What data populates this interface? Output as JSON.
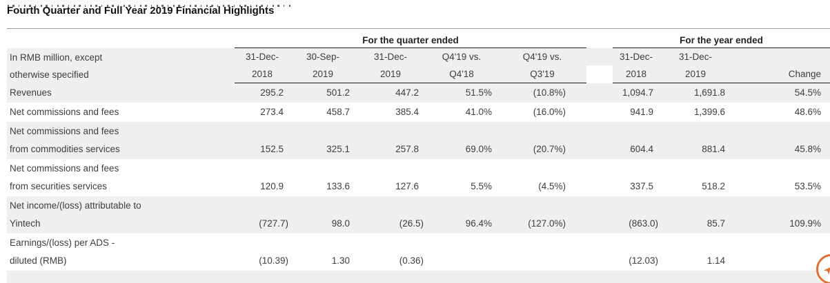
{
  "page": {
    "title": "Fourth Quarter and Full Year 2019 Financial Highlights"
  },
  "table": {
    "unit_note": "In RMB million, except\notherwise specified",
    "section_quarter": "For the quarter ended",
    "section_year": "For the year ended",
    "quarter_columns": [
      "31-Dec-\n2018",
      "30-Sep-\n2019",
      "31-Dec-\n2019",
      "Q4'19 vs.\nQ4'18",
      "Q4'19 vs.\nQ3'19"
    ],
    "year_columns": [
      "31-Dec-\n2018",
      "31-Dec-\n2019",
      "Change"
    ],
    "rows": [
      {
        "label": "Revenues",
        "values": [
          "295.2",
          "501.2",
          "447.2",
          "51.5%",
          "(10.8%)",
          "1,094.7",
          "1,691.8",
          "54.5%"
        ]
      },
      {
        "label": "Net commissions and fees",
        "values": [
          "273.4",
          "458.7",
          "385.4",
          "41.0%",
          "(16.0%)",
          "941.9",
          "1,399.6",
          "48.6%"
        ]
      },
      {
        "label": "Net commissions and fees\nfrom commodities services",
        "values": [
          "152.5",
          "325.1",
          "257.8",
          "69.0%",
          "(20.7%)",
          "604.4",
          "881.4",
          "45.8%"
        ]
      },
      {
        "label": "Net commissions and fees\nfrom securities services",
        "values": [
          "120.9",
          "133.6",
          "127.6",
          "5.5%",
          "(4.5%)",
          "337.5",
          "518.2",
          "53.5%"
        ]
      },
      {
        "label": "Net income/(loss) attributable to\nYintech",
        "values": [
          "(727.7)",
          "98.0",
          "(26.5)",
          "96.4%",
          "(127.0%)",
          "(863.0)",
          "85.7",
          "109.9%"
        ]
      },
      {
        "label": "Earnings/(loss) per ADS -\ndiluted (RMB)",
        "values": [
          "(10.39)",
          "1.30",
          "(0.36)",
          "",
          "",
          "(12.03)",
          "1.14",
          ""
        ]
      }
    ]
  },
  "floating_button": {
    "name": "back-to-top",
    "arrow_glyph": "➤",
    "accent_color": "#e0722f"
  }
}
